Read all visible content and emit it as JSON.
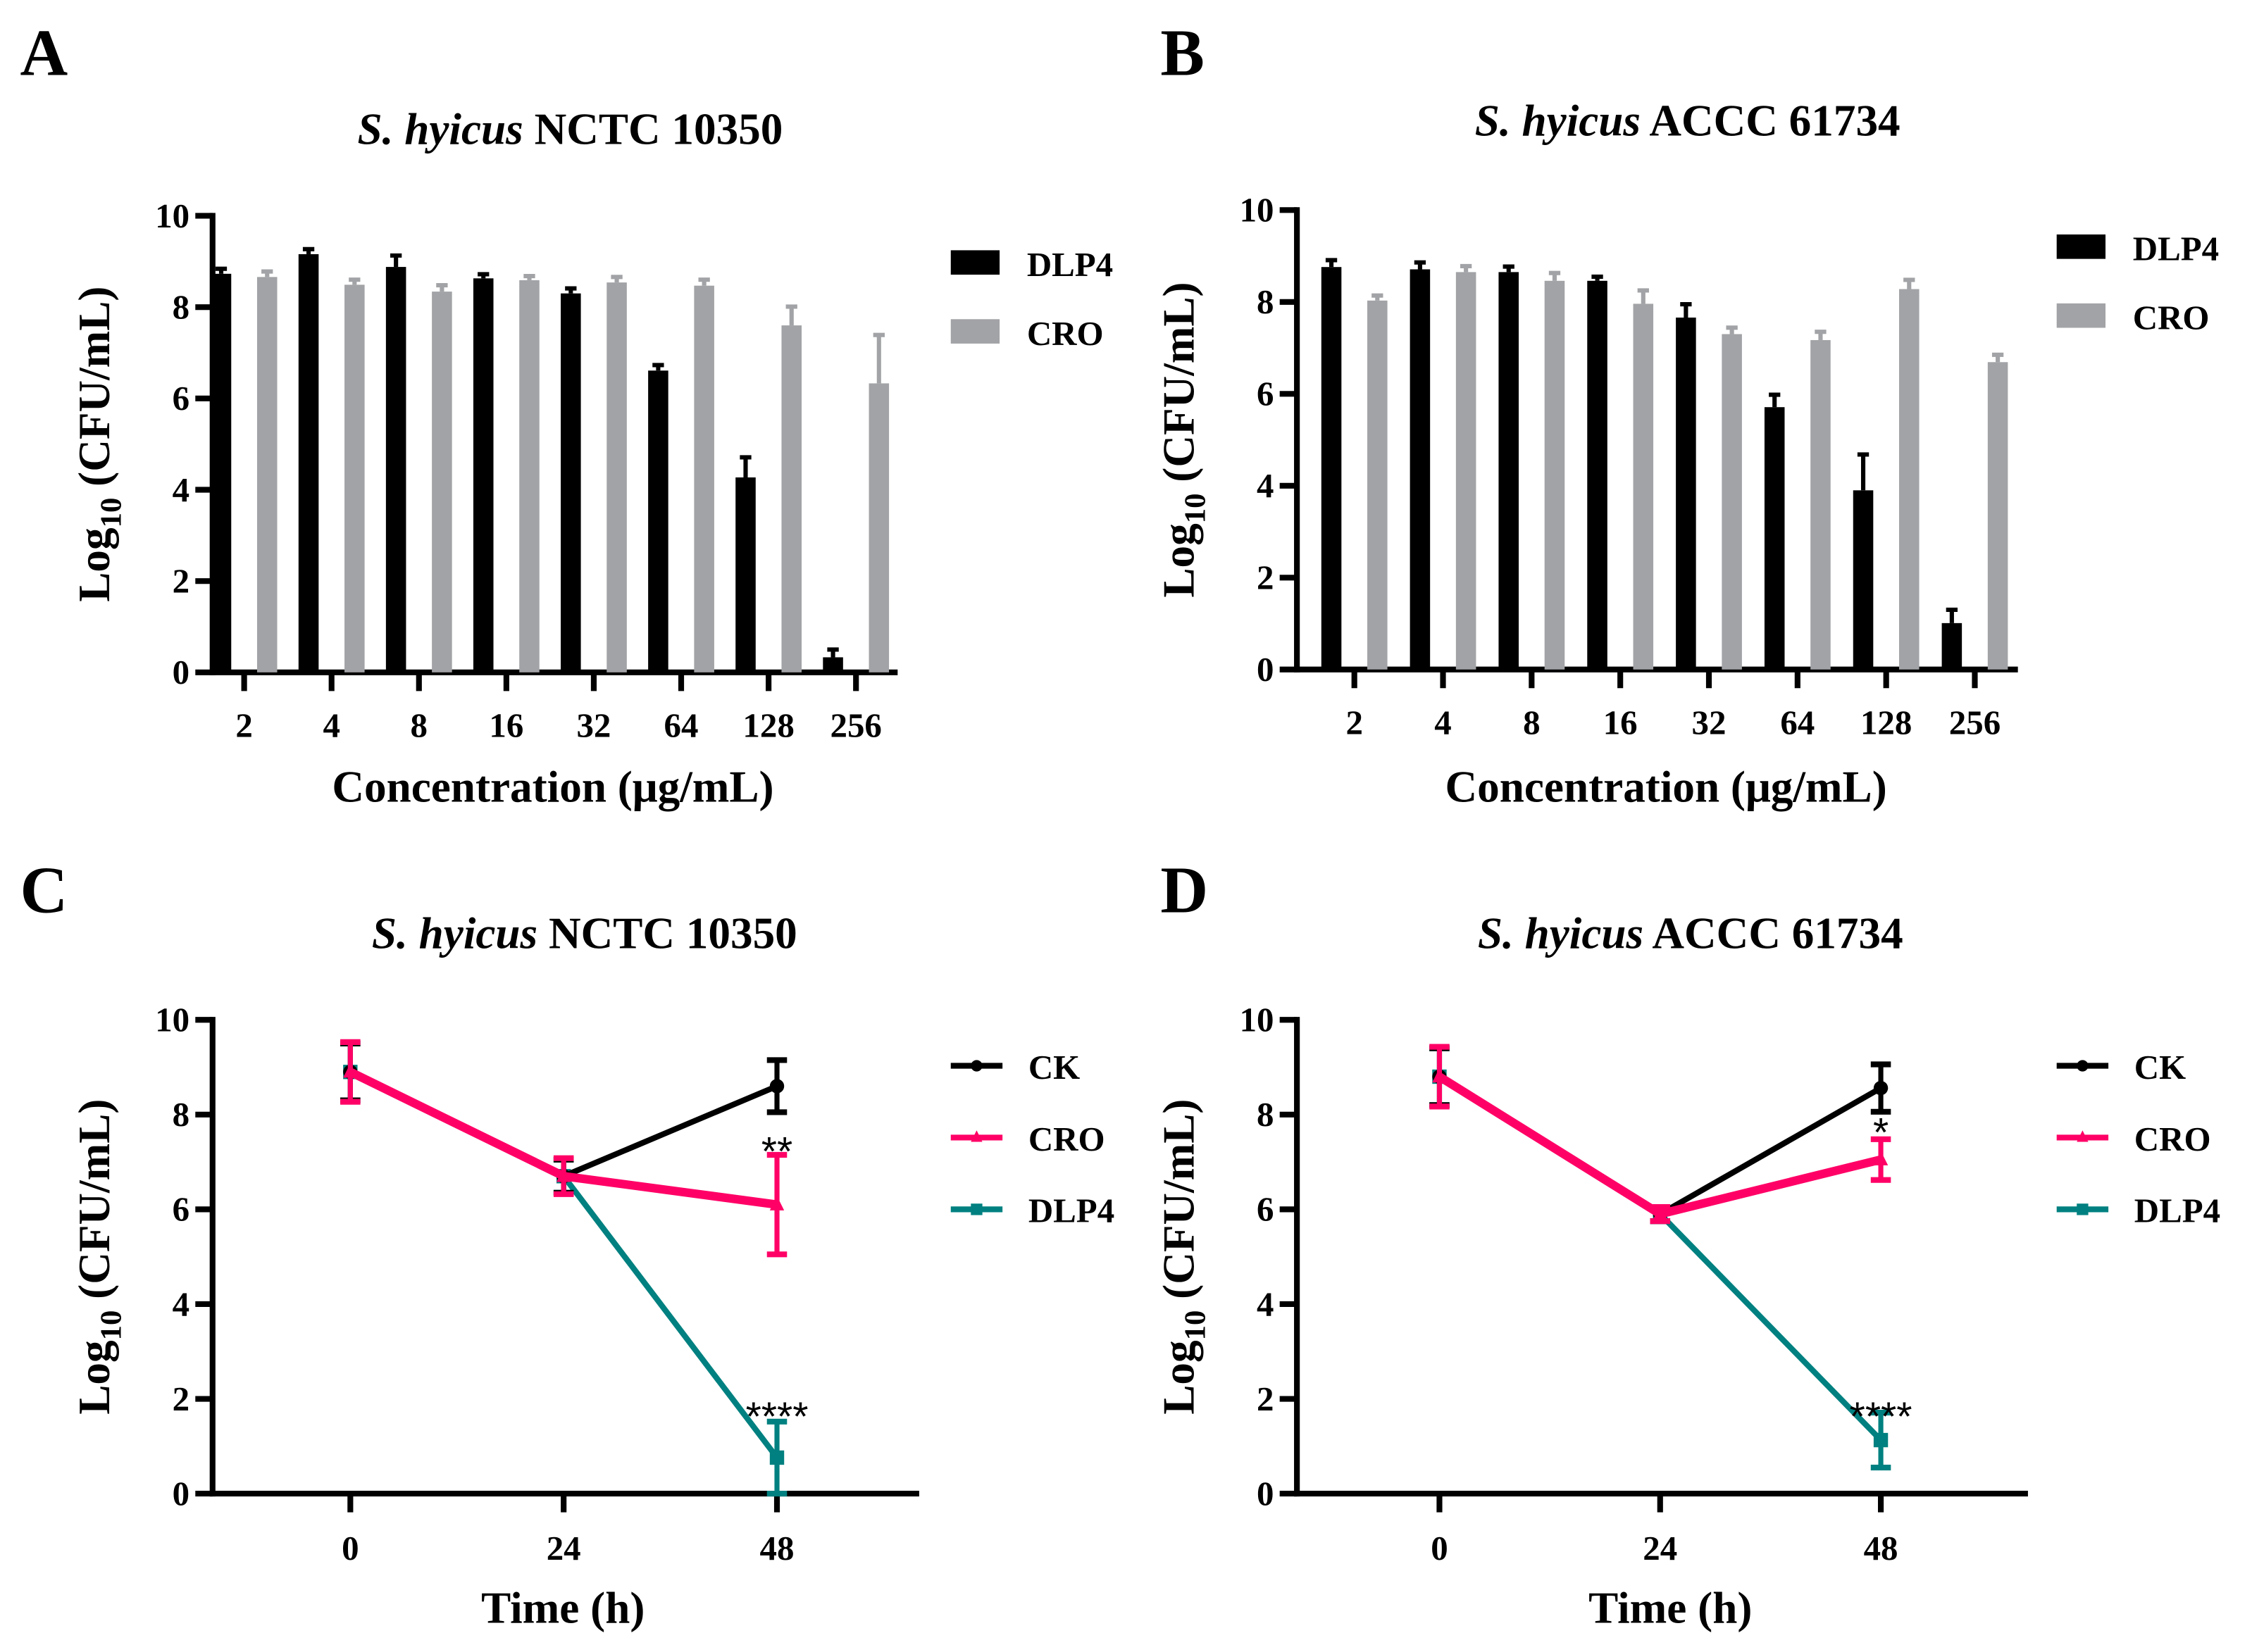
{
  "chart_data": [
    {
      "panel": "A",
      "type": "bar",
      "title_italic": "S. hyicus",
      "title_rest": "NCTC 10350",
      "xlabel": "Concentration (μg/mL)",
      "ylabel_main": "Log",
      "ylabel_sub": "10",
      "ylabel_rest": " (CFU/mL)",
      "ylim": [
        0,
        10
      ],
      "yticks": [
        0,
        2,
        4,
        6,
        8,
        10
      ],
      "categories": [
        "2",
        "4",
        "8",
        "16",
        "32",
        "64",
        "128",
        "256"
      ],
      "legend_position": "right",
      "series": [
        {
          "name": "DLP4",
          "color": "#000000",
          "values": [
            8.73,
            9.16,
            8.88,
            8.63,
            8.3,
            6.61,
            4.27,
            0.33
          ],
          "errors": [
            0.11,
            0.11,
            0.25,
            0.09,
            0.11,
            0.12,
            0.44,
            0.17
          ]
        },
        {
          "name": "CRO",
          "color": "#a2a3a6",
          "values": [
            8.66,
            8.49,
            8.34,
            8.59,
            8.54,
            8.47,
            7.6,
            6.33
          ],
          "errors": [
            0.12,
            0.11,
            0.14,
            0.09,
            0.12,
            0.13,
            0.41,
            1.06
          ]
        }
      ]
    },
    {
      "panel": "B",
      "type": "bar",
      "title_italic": "S. hyicus",
      "title_rest": "ACCC 61734",
      "xlabel": "Concentration (μg/mL)",
      "ylabel_main": "Log",
      "ylabel_sub": "10",
      "ylabel_rest": " (CFU/mL)",
      "ylim": [
        0,
        10
      ],
      "yticks": [
        0,
        2,
        4,
        6,
        8,
        10
      ],
      "categories": [
        "2",
        "4",
        "8",
        "16",
        "32",
        "64",
        "128",
        "256"
      ],
      "legend_position": "right",
      "series": [
        {
          "name": "DLP4",
          "color": "#000000",
          "values": [
            8.76,
            8.71,
            8.65,
            8.46,
            7.66,
            5.71,
            3.9,
            1.01
          ],
          "errors": [
            0.15,
            0.15,
            0.12,
            0.09,
            0.29,
            0.27,
            0.78,
            0.29
          ]
        },
        {
          "name": "CRO",
          "color": "#a2a3a6",
          "values": [
            8.03,
            8.65,
            8.46,
            7.96,
            7.3,
            7.17,
            8.28,
            6.69
          ],
          "errors": [
            0.11,
            0.13,
            0.17,
            0.29,
            0.14,
            0.18,
            0.2,
            0.16
          ]
        }
      ]
    },
    {
      "panel": "C",
      "type": "line",
      "title_italic": "S. hyicus",
      "title_rest": "NCTC 10350",
      "xlabel": "Time (h)",
      "ylabel_main": "Log",
      "ylabel_sub": "10",
      "ylabel_rest": " (CFU/mL)",
      "ylim": [
        0,
        10
      ],
      "yticks": [
        0,
        2,
        4,
        6,
        8,
        10
      ],
      "xlim": [
        -15.5,
        64
      ],
      "xticks": [
        0,
        24,
        48
      ],
      "legend_position": "right",
      "series": [
        {
          "name": "CK",
          "color": "#000000",
          "marker": "circle",
          "x": [
            0,
            24,
            48
          ],
          "values": [
            8.9,
            6.7,
            8.6
          ],
          "errors": [
            0.6,
            0.35,
            0.55
          ]
        },
        {
          "name": "CRO",
          "color": "#ff0066",
          "marker": "triangle",
          "x": [
            0,
            24,
            48
          ],
          "values": [
            8.9,
            6.7,
            6.1
          ],
          "errors": [
            0.63,
            0.38,
            1.05
          ]
        },
        {
          "name": "DLP4",
          "color": "#008080",
          "marker": "square",
          "x": [
            0,
            24,
            48
          ],
          "values": [
            8.9,
            6.7,
            0.76
          ],
          "errors": [
            0.6,
            0.35,
            0.76
          ]
        }
      ],
      "annotations": [
        {
          "text": "**",
          "x": 48,
          "y": 7.3
        },
        {
          "text": "****",
          "x": 48,
          "y": 1.7
        }
      ]
    },
    {
      "panel": "D",
      "type": "line",
      "title_italic": "S. hyicus",
      "title_rest": "ACCC 61734",
      "xlabel": "Time (h)",
      "ylabel_main": "Log",
      "ylabel_sub": "10",
      "ylabel_rest": " (CFU/mL)",
      "ylim": [
        0,
        10
      ],
      "yticks": [
        0,
        2,
        4,
        6,
        8,
        10
      ],
      "xlim": [
        -15.5,
        64
      ],
      "xticks": [
        0,
        24,
        48
      ],
      "legend_position": "right",
      "series": [
        {
          "name": "CK",
          "color": "#000000",
          "marker": "circle",
          "x": [
            0,
            24,
            48
          ],
          "values": [
            8.8,
            5.9,
            8.56
          ],
          "errors": [
            0.6,
            0.15,
            0.5
          ]
        },
        {
          "name": "CRO",
          "color": "#ff0066",
          "marker": "triangle",
          "x": [
            0,
            24,
            48
          ],
          "values": [
            8.8,
            5.9,
            7.05
          ],
          "errors": [
            0.63,
            0.15,
            0.43
          ]
        },
        {
          "name": "DLP4",
          "color": "#008080",
          "marker": "square",
          "x": [
            0,
            24,
            48
          ],
          "values": [
            8.8,
            5.9,
            1.13
          ],
          "errors": [
            0.6,
            0.15,
            0.58
          ]
        }
      ],
      "annotations": [
        {
          "text": "*",
          "x": 48,
          "y": 7.7
        },
        {
          "text": "****",
          "x": 48,
          "y": 1.7
        }
      ]
    }
  ]
}
